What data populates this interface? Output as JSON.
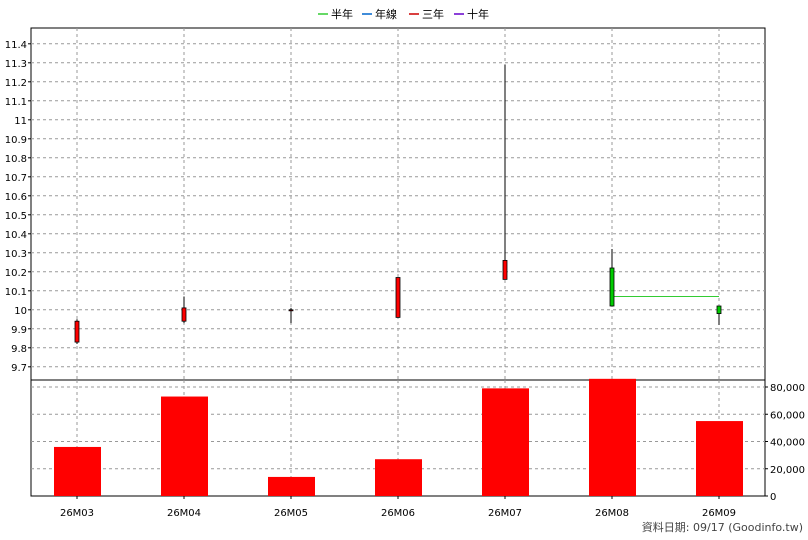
{
  "legend": [
    {
      "label": "半年",
      "color": "#33cc33"
    },
    {
      "label": "年線",
      "color": "#0066cc"
    },
    {
      "label": "三年",
      "color": "#cc0000"
    },
    {
      "label": "十年",
      "color": "#6600cc"
    }
  ],
  "footer_text": "資料日期: 09/17  (Goodinfo.tw)",
  "colors": {
    "up": "#ff0000",
    "down": "#00cc00",
    "volume": "#ff0000",
    "grid": "#999999",
    "ma_half_year": "#33cc33"
  },
  "chart_data": [
    {
      "type": "candlestick",
      "categories": [
        "26M03",
        "26M04",
        "26M05",
        "26M06",
        "26M07",
        "26M08",
        "26M09"
      ],
      "candles": [
        {
          "open": 9.83,
          "close": 9.94,
          "high": 9.95,
          "low": 9.82
        },
        {
          "open": 9.94,
          "close": 10.01,
          "high": 10.07,
          "low": 9.93
        },
        {
          "open": 10.0,
          "close": 10.0,
          "high": 10.01,
          "low": 9.93
        },
        {
          "open": 9.96,
          "close": 10.17,
          "high": 10.17,
          "low": 9.96
        },
        {
          "open": 10.16,
          "close": 10.26,
          "high": 11.29,
          "low": 10.16
        },
        {
          "open": 10.22,
          "close": 10.02,
          "high": 10.32,
          "low": 10.02
        },
        {
          "open": 10.02,
          "close": 9.98,
          "high": 10.02,
          "low": 9.92
        }
      ],
      "moving_average": {
        "name": "半年",
        "values": [
          null,
          null,
          null,
          null,
          null,
          10.07,
          10.07
        ]
      },
      "yticks": [
        "9.7",
        "9.8",
        "9.9",
        "10",
        "10.1",
        "10.2",
        "10.3",
        "10.4",
        "10.5",
        "10.6",
        "10.7",
        "10.8",
        "10.9",
        "11",
        "11.1",
        "11.2",
        "11.3",
        "11.4"
      ],
      "ylim": [
        9.63,
        11.45
      ],
      "grid": true,
      "legend_position": "top-center"
    },
    {
      "type": "bar",
      "categories": [
        "26M03",
        "26M04",
        "26M05",
        "26M06",
        "26M07",
        "26M08",
        "26M09"
      ],
      "values": [
        36000,
        73000,
        14000,
        27000,
        79000,
        86000,
        55000
      ],
      "yticks": [
        "0",
        "20,000",
        "40,000",
        "60,000",
        "80,000"
      ],
      "ylim": [
        0,
        86000
      ],
      "grid": true
    }
  ]
}
